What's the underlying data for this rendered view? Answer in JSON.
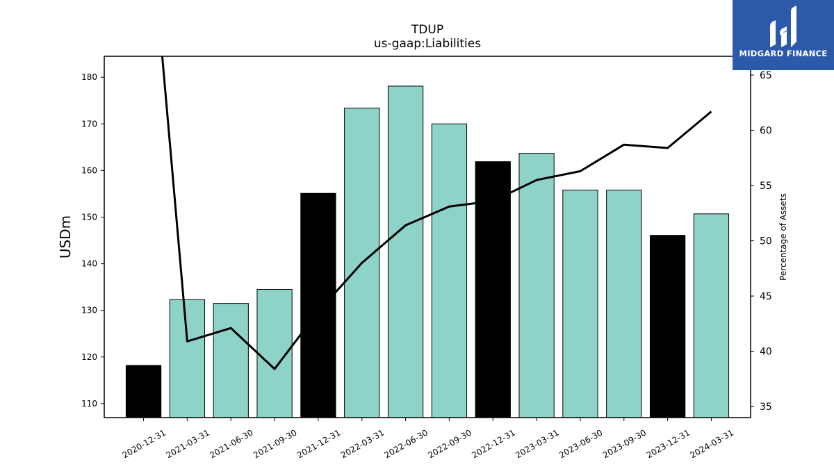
{
  "chart_data": {
    "type": "bar+line",
    "title": "TDUP",
    "subtitle": "us-gaap:Liabilities",
    "ylabel": "USDm",
    "y2label": "Percentage of Assets",
    "categories": [
      "2020-12-31",
      "2021-03-31",
      "2021-06-30",
      "2021-09-30",
      "2021-12-31",
      "2022-03-31",
      "2022-06-30",
      "2022-09-30",
      "2022-12-31",
      "2023-03-31",
      "2023-06-30",
      "2023-09-30",
      "2023-12-31",
      "2024-03-31"
    ],
    "bars": {
      "values": [
        118.2,
        132.3,
        131.5,
        134.5,
        155.1,
        173.4,
        178.1,
        170.0,
        161.9,
        163.7,
        155.8,
        155.8,
        146.1,
        150.7
      ],
      "colors": [
        "#000000",
        "#8dd3c7",
        "#8dd3c7",
        "#8dd3c7",
        "#000000",
        "#8dd3c7",
        "#8dd3c7",
        "#8dd3c7",
        "#000000",
        "#8dd3c7",
        "#8dd3c7",
        "#8dd3c7",
        "#000000",
        "#8dd3c7"
      ]
    },
    "line": {
      "values": [
        86.0,
        40.9,
        42.1,
        38.4,
        43.6,
        48.0,
        51.4,
        53.1,
        53.6,
        55.5,
        56.3,
        58.7,
        58.4,
        61.7
      ],
      "color": "#000000"
    },
    "ylim": [
      107,
      184.5
    ],
    "y2lim": [
      34,
      66.7
    ],
    "yticks": [
      "110",
      "120",
      "130",
      "140",
      "150",
      "160",
      "170",
      "180"
    ],
    "ytick_values": [
      110,
      120,
      130,
      140,
      150,
      160,
      170,
      180
    ],
    "y2ticks": [
      "35",
      "40",
      "45",
      "50",
      "55",
      "60",
      "65"
    ],
    "y2tick_values": [
      35,
      40,
      45,
      50,
      55,
      60,
      65
    ],
    "grid": false
  },
  "logo": {
    "text": "MIDGARD FINANCE",
    "background": "#2d5aa8",
    "icon": "midgard-logo-icon"
  }
}
